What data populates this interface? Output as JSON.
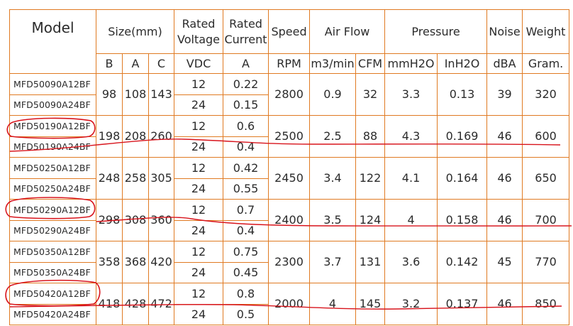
{
  "headers": {
    "model": "Model",
    "size": "Size(mm)",
    "rated_voltage": "Rated Voltage",
    "rated_current": "Rated Current",
    "speed": "Speed",
    "air_flow": "Air Flow",
    "pressure": "Pressure",
    "noise": "Noise",
    "weight": "Weight"
  },
  "units": {
    "b": "B",
    "a": "A",
    "c": "C",
    "vdc": "VDC",
    "amp": "A",
    "rpm": "RPM",
    "m3min": "m3/min",
    "cfm": "CFM",
    "mmh2o": "mmH2O",
    "inh2o": "InH2O",
    "dba": "dBA",
    "gram": "Gram."
  },
  "groups": [
    {
      "models": [
        "MFD50090A12BF",
        "MFD50090A24BF"
      ],
      "b": "98",
      "a": "108",
      "c": "143",
      "voltages": [
        "12",
        "24"
      ],
      "currents": [
        "0.22",
        "0.15"
      ],
      "rpm": "2800",
      "m3min": "0.9",
      "cfm": "32",
      "mmh2o": "3.3",
      "inh2o": "0.13",
      "dba": "39",
      "gram": "320"
    },
    {
      "models": [
        "MFD50190A12BF",
        "MFD50190A24BF"
      ],
      "b": "198",
      "a": "208",
      "c": "260",
      "voltages": [
        "12",
        "24"
      ],
      "currents": [
        "0.6",
        "0.4"
      ],
      "rpm": "2500",
      "m3min": "2.5",
      "cfm": "88",
      "mmh2o": "4.3",
      "inh2o": "0.169",
      "dba": "46",
      "gram": "600"
    },
    {
      "models": [
        "MFD50250A12BF",
        "MFD50250A24BF"
      ],
      "b": "248",
      "a": "258",
      "c": "305",
      "voltages": [
        "12",
        "24"
      ],
      "currents": [
        "0.42",
        "0.55"
      ],
      "rpm": "2450",
      "m3min": "3.4",
      "cfm": "122",
      "mmh2o": "4.1",
      "inh2o": "0.164",
      "dba": "46",
      "gram": "650"
    },
    {
      "models": [
        "MFD50290A12BF",
        "MFD50290A24BF"
      ],
      "b": "298",
      "a": "308",
      "c": "360",
      "voltages": [
        "12",
        "24"
      ],
      "currents": [
        "0.7",
        "0.4"
      ],
      "rpm": "2400",
      "m3min": "3.5",
      "cfm": "124",
      "mmh2o": "4",
      "inh2o": "0.158",
      "dba": "46",
      "gram": "700"
    },
    {
      "models": [
        "MFD50350A12BF",
        "MFD50350A24BF"
      ],
      "b": "358",
      "a": "368",
      "c": "420",
      "voltages": [
        "12",
        "24"
      ],
      "currents": [
        "0.75",
        "0.45"
      ],
      "rpm": "2300",
      "m3min": "3.7",
      "cfm": "131",
      "mmh2o": "3.6",
      "inh2o": "0.142",
      "dba": "45",
      "gram": "770"
    },
    {
      "models": [
        "MFD50420A12BF",
        "MFD50420A24BF"
      ],
      "b": "418",
      "a": "428",
      "c": "472",
      "voltages": [
        "12",
        "24"
      ],
      "currents": [
        "0.8",
        "0.5"
      ],
      "rpm": "2000",
      "m3min": "4",
      "cfm": "145",
      "mmh2o": "3.2",
      "inh2o": "0.137",
      "dba": "46",
      "gram": "850"
    }
  ],
  "colors": {
    "grid_lines": "#e07a22",
    "handwritten_marks": "#d8141c",
    "text": "#2b2b2b"
  }
}
